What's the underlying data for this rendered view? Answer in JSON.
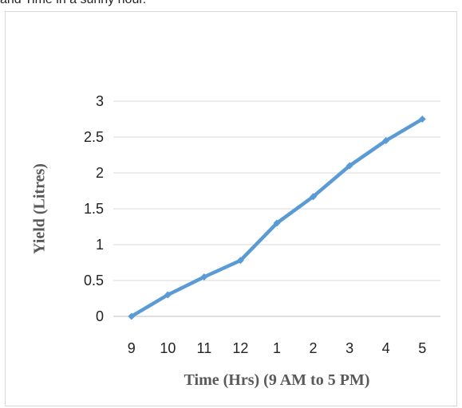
{
  "header": {
    "caption": "and Time in a sunny hour."
  },
  "chart_data": {
    "type": "line",
    "categories": [
      "9",
      "10",
      "11",
      "12",
      "1",
      "2",
      "3",
      "4",
      "5"
    ],
    "series": [
      {
        "values": [
          0,
          0.3,
          0.55,
          0.78,
          1.3,
          1.67,
          2.1,
          2.45,
          2.75
        ]
      }
    ],
    "xlabel": "Time (Hrs) (9 AM to 5 PM)",
    "ylabel": "Yield (Litres)",
    "ylim": [
      0,
      3
    ],
    "yticks": [
      "0",
      "0.5",
      "1",
      "1.5",
      "2",
      "2.5",
      "3"
    ],
    "grid": true,
    "legend": "none",
    "colors": {
      "series": "#5b9bd5",
      "grid": "#d9d9d9",
      "axis": "#bfbfbf"
    }
  }
}
